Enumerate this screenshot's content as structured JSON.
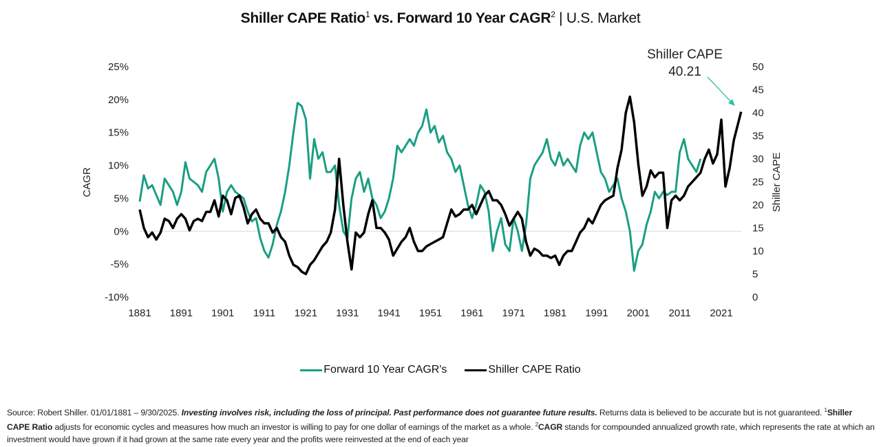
{
  "title": {
    "part1": "Shiller CAPE Ratio",
    "sup1": "1",
    "part2": " vs. Forward 10 Year CAGR",
    "sup2": "2",
    "part3": " | U.S. Market"
  },
  "annotation": {
    "line1": "Shiller CAPE",
    "line2": "40.21"
  },
  "legend": [
    {
      "label": "Forward 10 Year CAGR's",
      "color": "#1a9e83"
    },
    {
      "label": "Shiller CAPE Ratio",
      "color": "#000000"
    }
  ],
  "footnote": {
    "source": "Source: Robert Shiller. 01/01/1881 – 9/30/2025. ",
    "disclaimer": "Investing involves risk, including the loss of principal. Past performance does not guarantee future results.",
    "returns": " Returns data is believed to be accurate but is not guaranteed. ",
    "sup1": "1",
    "cape_term": "Shiller CAPE Ratio",
    "cape_def": " adjusts for economic cycles and measures how much an investor is willing to pay for one dollar of earnings of the market as a whole. ",
    "sup2": "2",
    "cagr_term": "CAGR",
    "cagr_def": " stands for compounded annualized growth rate, which represents the rate at which an investment would have grown if it had grown at the same rate every year and the profits were reinvested at the end of each year"
  },
  "chart_data": {
    "type": "line",
    "title": "Shiller CAPE Ratio vs. Forward 10 Year CAGR | U.S. Market",
    "xlabel": "",
    "ylabel": "CAGR",
    "y2label": "Shiller CAPE",
    "xlim": [
      1881,
      2025.75
    ],
    "ylim": [
      -0.1,
      0.25
    ],
    "y2lim": [
      0,
      50
    ],
    "x_ticks": [
      "1881",
      "1891",
      "1901",
      "1911",
      "1921",
      "1931",
      "1941",
      "1951",
      "1961",
      "1971",
      "1981",
      "1991",
      "2001",
      "2011",
      "2021"
    ],
    "y_ticks": [
      "25%",
      "20%",
      "15%",
      "10%",
      "5%",
      "0%",
      "-5%",
      "-10%"
    ],
    "y2_ticks": [
      "50",
      "45",
      "40",
      "35",
      "30",
      "25",
      "20",
      "15",
      "10",
      "5",
      "0"
    ],
    "zero_line": true,
    "grid": false,
    "legend_position": "bottom",
    "series": [
      {
        "name": "Forward 10 Year CAGR's",
        "axis": "left",
        "color": "#1a9e83",
        "x": [
          1881,
          1882,
          1883,
          1884,
          1885,
          1886,
          1887,
          1888,
          1889,
          1890,
          1891,
          1892,
          1893,
          1894,
          1895,
          1896,
          1897,
          1898,
          1899,
          1900,
          1901,
          1902,
          1903,
          1904,
          1905,
          1906,
          1907,
          1908,
          1909,
          1910,
          1911,
          1912,
          1913,
          1914,
          1915,
          1916,
          1917,
          1918,
          1919,
          1920,
          1921,
          1922,
          1923,
          1924,
          1925,
          1926,
          1927,
          1928,
          1929,
          1930,
          1931,
          1932,
          1933,
          1934,
          1935,
          1936,
          1937,
          1938,
          1939,
          1940,
          1941,
          1942,
          1943,
          1944,
          1945,
          1946,
          1947,
          1948,
          1949,
          1950,
          1951,
          1952,
          1953,
          1954,
          1955,
          1956,
          1957,
          1958,
          1959,
          1960,
          1961,
          1962,
          1963,
          1964,
          1965,
          1966,
          1967,
          1968,
          1969,
          1970,
          1971,
          1972,
          1973,
          1974,
          1975,
          1976,
          1977,
          1978,
          1979,
          1980,
          1981,
          1982,
          1983,
          1984,
          1985,
          1986,
          1987,
          1988,
          1989,
          1990,
          1991,
          1992,
          1993,
          1994,
          1995,
          1996,
          1997,
          1998,
          1999,
          2000,
          2001,
          2002,
          2003,
          2004,
          2005,
          2006,
          2007,
          2008,
          2009,
          2010,
          2011,
          2012,
          2013,
          2014,
          2015,
          2016
        ],
        "values": [
          0.045,
          0.085,
          0.065,
          0.07,
          0.055,
          0.04,
          0.08,
          0.07,
          0.06,
          0.04,
          0.06,
          0.105,
          0.08,
          0.075,
          0.07,
          0.06,
          0.09,
          0.1,
          0.11,
          0.08,
          0.03,
          0.06,
          0.07,
          0.06,
          0.055,
          0.05,
          0.03,
          0.015,
          0.02,
          -0.01,
          -0.03,
          -0.04,
          -0.02,
          0.01,
          0.03,
          0.06,
          0.1,
          0.15,
          0.195,
          0.19,
          0.17,
          0.08,
          0.14,
          0.11,
          0.12,
          0.09,
          0.09,
          0.1,
          0.04,
          0.0,
          -0.01,
          0.05,
          0.08,
          0.09,
          0.06,
          0.08,
          0.05,
          0.04,
          0.02,
          0.03,
          0.05,
          0.08,
          0.13,
          0.12,
          0.13,
          0.14,
          0.13,
          0.15,
          0.16,
          0.185,
          0.15,
          0.16,
          0.135,
          0.145,
          0.12,
          0.11,
          0.09,
          0.1,
          0.07,
          0.04,
          0.02,
          0.04,
          0.07,
          0.06,
          0.03,
          -0.03,
          0.0,
          0.02,
          -0.02,
          -0.03,
          0.02,
          0.0,
          -0.03,
          0.01,
          0.08,
          0.1,
          0.11,
          0.12,
          0.14,
          0.11,
          0.1,
          0.12,
          0.1,
          0.11,
          0.1,
          0.09,
          0.13,
          0.15,
          0.14,
          0.15,
          0.12,
          0.09,
          0.08,
          0.06,
          0.07,
          0.08,
          0.05,
          0.03,
          0.0,
          -0.06,
          -0.03,
          -0.02,
          0.01,
          0.03,
          0.06,
          0.05,
          0.06,
          0.055,
          0.06,
          0.06,
          0.12,
          0.14,
          0.11,
          0.1,
          0.09,
          0.11
        ]
      },
      {
        "name": "Shiller CAPE Ratio",
        "axis": "right",
        "color": "#000000",
        "x": [
          1881,
          1882,
          1883,
          1884,
          1885,
          1886,
          1887,
          1888,
          1889,
          1890,
          1891,
          1892,
          1893,
          1894,
          1895,
          1896,
          1897,
          1898,
          1899,
          1900,
          1901,
          1902,
          1903,
          1904,
          1905,
          1906,
          1907,
          1908,
          1909,
          1910,
          1911,
          1912,
          1913,
          1914,
          1915,
          1916,
          1917,
          1918,
          1919,
          1920,
          1921,
          1922,
          1923,
          1924,
          1925,
          1926,
          1927,
          1928,
          1929,
          1930,
          1931,
          1932,
          1933,
          1934,
          1935,
          1936,
          1937,
          1938,
          1939,
          1940,
          1941,
          1942,
          1943,
          1944,
          1945,
          1946,
          1947,
          1948,
          1949,
          1950,
          1951,
          1952,
          1953,
          1954,
          1955,
          1956,
          1957,
          1958,
          1959,
          1960,
          1961,
          1962,
          1963,
          1964,
          1965,
          1966,
          1967,
          1968,
          1969,
          1970,
          1971,
          1972,
          1973,
          1974,
          1975,
          1976,
          1977,
          1978,
          1979,
          1980,
          1981,
          1982,
          1983,
          1984,
          1985,
          1986,
          1987,
          1988,
          1989,
          1990,
          1991,
          1992,
          1993,
          1994,
          1995,
          1996,
          1997,
          1998,
          1999,
          2000,
          2001,
          2002,
          2003,
          2004,
          2005,
          2006,
          2007,
          2008,
          2009,
          2010,
          2011,
          2012,
          2013,
          2014,
          2015,
          2016,
          2017,
          2018,
          2019,
          2020,
          2021,
          2022,
          2023,
          2024,
          2025.75
        ],
        "values": [
          19.0,
          15.0,
          13.0,
          14.0,
          12.5,
          14.0,
          17.0,
          16.5,
          15.0,
          17.0,
          18.0,
          17.0,
          14.5,
          16.5,
          17.0,
          16.5,
          18.5,
          18.5,
          21.0,
          17.5,
          22.0,
          21.0,
          18.0,
          21.5,
          22.0,
          19.5,
          16.0,
          18.0,
          19.0,
          17.0,
          16.0,
          16.0,
          14.0,
          15.0,
          13.0,
          12.0,
          9.0,
          7.0,
          6.5,
          5.5,
          5.0,
          7.0,
          8.0,
          9.5,
          11.0,
          12.0,
          14.0,
          19.0,
          30.0,
          20.0,
          12.0,
          6.0,
          14.0,
          13.0,
          14.0,
          18.0,
          21.0,
          15.0,
          15.0,
          14.0,
          12.5,
          9.0,
          10.5,
          12.0,
          13.0,
          15.0,
          12.0,
          10.0,
          10.0,
          11.0,
          11.5,
          12.0,
          12.5,
          13.0,
          16.0,
          19.0,
          17.5,
          18.0,
          19.0,
          19.0,
          20.0,
          18.0,
          20.0,
          22.0,
          23.0,
          21.0,
          21.0,
          20.0,
          18.0,
          15.5,
          17.0,
          18.5,
          17.0,
          12.0,
          9.0,
          10.5,
          10.0,
          9.0,
          9.0,
          8.5,
          9.0,
          7.0,
          9.0,
          10.0,
          10.0,
          12.0,
          14.0,
          15.0,
          17.0,
          16.0,
          18.0,
          20.0,
          21.0,
          21.5,
          22.0,
          28.0,
          32.0,
          40.0,
          43.5,
          38.0,
          29.0,
          22.0,
          24.0,
          27.5,
          26.0,
          27.0,
          27.0,
          15.0,
          21.0,
          22.0,
          21.0,
          22.0,
          24.0,
          25.0,
          26.0,
          27.0,
          30.0,
          32.0,
          29.0,
          31.0,
          38.5,
          24.0,
          28.0,
          34.0,
          40.21
        ]
      }
    ]
  }
}
